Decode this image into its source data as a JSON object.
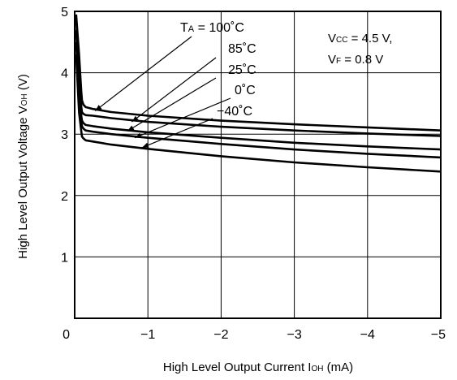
{
  "chart_data": {
    "type": "line",
    "xlabel_main": "High Level Output Current",
    "xlabel_sym": "I",
    "xlabel_sub": "OH",
    "xlabel_unit": "(mA)",
    "ylabel_main": "High Level Output Voltage",
    "ylabel_sym": "V",
    "ylabel_sub": "OH",
    "ylabel_unit": "(V)",
    "xlim": [
      0,
      -5
    ],
    "ylim": [
      0,
      5
    ],
    "grid": true,
    "xticks": [
      {
        "v": 0,
        "label": "0"
      },
      {
        "v": -1,
        "label": "−1"
      },
      {
        "v": -2,
        "label": "−2"
      },
      {
        "v": -3,
        "label": "−3"
      },
      {
        "v": -4,
        "label": "−4"
      },
      {
        "v": -5,
        "label": "−5"
      }
    ],
    "yticks": [
      {
        "v": 1,
        "label": "1"
      },
      {
        "v": 2,
        "label": "2"
      },
      {
        "v": 3,
        "label": "3"
      },
      {
        "v": 4,
        "label": "4"
      },
      {
        "v": 5,
        "label": "5"
      }
    ],
    "conditions": [
      {
        "sym": "V",
        "sub": "CC",
        "rest": " = 4.5 V,"
      },
      {
        "sym": "V",
        "sub": "F",
        "rest": " = 0.8 V"
      }
    ],
    "series": [
      {
        "name": "100°C",
        "label": "100˚C",
        "label_prefix_sym": "T",
        "label_prefix_sub": "A",
        "label_prefix_rest": " = ",
        "x": [
          -0.02,
          -0.06,
          -0.09,
          -0.1,
          -0.12,
          -0.15,
          -0.25,
          -0.5,
          -1,
          -2,
          -3,
          -4,
          -5
        ],
        "y": [
          4.95,
          4.3,
          3.7,
          3.55,
          3.48,
          3.44,
          3.41,
          3.36,
          3.3,
          3.22,
          3.16,
          3.11,
          3.06
        ]
      },
      {
        "name": "85°C",
        "label": "85˚C",
        "x": [
          -0.02,
          -0.06,
          -0.09,
          -0.1,
          -0.12,
          -0.15,
          -0.25,
          -0.5,
          -1,
          -2,
          -3,
          -4,
          -5
        ],
        "y": [
          4.9,
          4.1,
          3.45,
          3.36,
          3.33,
          3.31,
          3.3,
          3.26,
          3.2,
          3.12,
          3.06,
          3.01,
          2.97
        ]
      },
      {
        "name": "25°C",
        "label": "25˚C",
        "x": [
          -0.02,
          -0.06,
          -0.09,
          -0.1,
          -0.12,
          -0.15,
          -0.25,
          -0.5,
          -1,
          -2,
          -3,
          -4,
          -5
        ],
        "y": [
          4.7,
          3.8,
          3.3,
          3.22,
          3.18,
          3.15,
          3.13,
          3.09,
          3.03,
          2.94,
          2.86,
          2.8,
          2.75
        ]
      },
      {
        "name": "0°C",
        "label": "0˚C",
        "x": [
          -0.02,
          -0.06,
          -0.09,
          -0.1,
          -0.12,
          -0.15,
          -0.25,
          -0.5,
          -1,
          -2,
          -3,
          -4,
          -5
        ],
        "y": [
          4.5,
          3.6,
          3.2,
          3.13,
          3.09,
          3.06,
          3.04,
          3.0,
          2.94,
          2.84,
          2.75,
          2.68,
          2.62
        ]
      },
      {
        "name": "-40°C",
        "label": "−40˚C",
        "x": [
          -0.02,
          -0.06,
          -0.09,
          -0.1,
          -0.12,
          -0.15,
          -0.25,
          -0.5,
          -1,
          -2,
          -3,
          -4,
          -5
        ],
        "y": [
          4.3,
          3.35,
          3.05,
          2.96,
          2.93,
          2.9,
          2.88,
          2.83,
          2.76,
          2.64,
          2.54,
          2.46,
          2.39
        ]
      }
    ],
    "annotation_targets": [
      {
        "x": -0.28,
        "y": 3.38
      },
      {
        "x": -0.78,
        "y": 3.2
      },
      {
        "x": -0.72,
        "y": 3.05
      },
      {
        "x": -0.82,
        "y": 2.94
      },
      {
        "x": -0.92,
        "y": 2.78
      }
    ]
  }
}
